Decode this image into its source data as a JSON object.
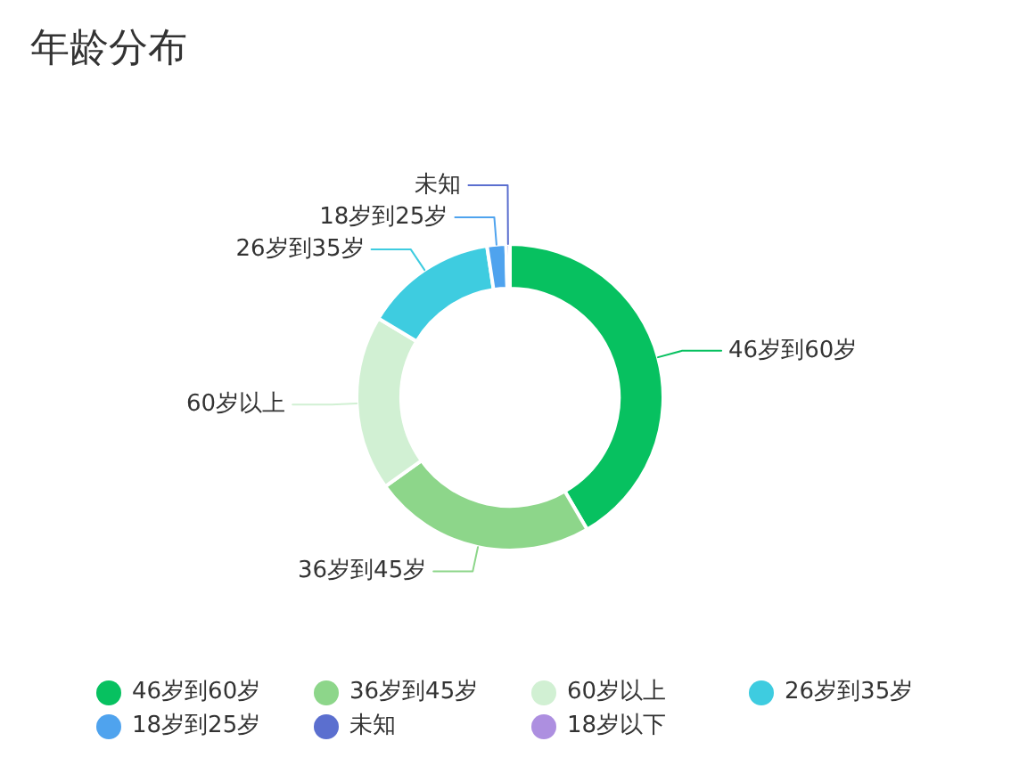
{
  "chart_data": {
    "type": "donut",
    "title": "年龄分布",
    "categories": [
      "46岁到60岁",
      "36岁到45岁",
      "60岁以上",
      "26岁到35岁",
      "18岁到25岁",
      "未知",
      "18岁以下"
    ],
    "values": [
      41.6,
      23.5,
      18.5,
      14.0,
      2.0,
      0.4,
      0
    ],
    "colors": [
      "#07c160",
      "#8dd68a",
      "#d1f0d3",
      "#3ecce0",
      "#4fa3ee",
      "#5b6fcf",
      "#ad8fe0"
    ],
    "legend": "bottom"
  }
}
